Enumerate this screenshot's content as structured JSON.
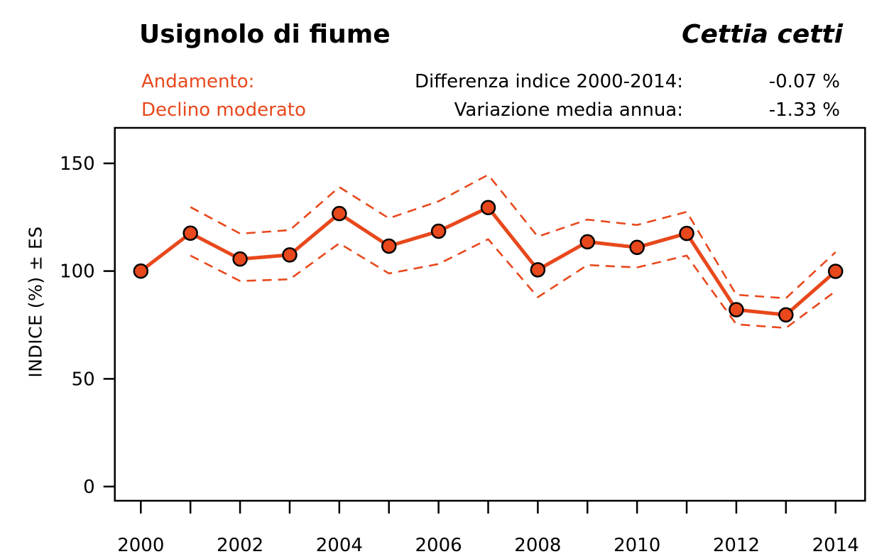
{
  "header": {
    "common_name": "Usignolo di fiume",
    "species_name": "Cettia cetti",
    "trend_label": "Andamento:",
    "trend_value": "Declino moderato",
    "diff_label": "Differenza indice 2000-2014:",
    "diff_value": "-0.07 %",
    "annual_label": "Variazione media annua:",
    "annual_value": "-1.33 %"
  },
  "colors": {
    "accent": "#E8481C",
    "axis": "#000000",
    "background": "#FFFFFF"
  },
  "chart_data": {
    "type": "line",
    "title": "Usignolo di fiume",
    "subtitle": "Cettia cetti",
    "xlabel": "",
    "ylabel": "INDICE (%) ± ES",
    "x": [
      2000,
      2001,
      2002,
      2003,
      2004,
      2005,
      2006,
      2007,
      2008,
      2009,
      2010,
      2011,
      2012,
      2013,
      2014
    ],
    "series": [
      {
        "name": "Indice",
        "style": "solid",
        "marker": true,
        "values": [
          100.0,
          117.6,
          105.6,
          107.5,
          126.7,
          111.6,
          118.5,
          129.5,
          100.6,
          113.6,
          111.0,
          117.5,
          82.1,
          79.7,
          99.9
        ]
      },
      {
        "name": "Limite superiore (+ES)",
        "style": "dashed",
        "marker": false,
        "values": [
          null,
          129.7,
          117.4,
          119.0,
          139.0,
          124.5,
          132.4,
          144.7,
          116.0,
          123.9,
          121.4,
          127.5,
          89.0,
          87.4,
          108.8
        ]
      },
      {
        "name": "Limite inferiore (-ES)",
        "style": "dashed",
        "marker": false,
        "values": [
          null,
          107.2,
          95.4,
          96.2,
          112.9,
          98.9,
          103.3,
          114.8,
          87.9,
          102.8,
          101.7,
          107.2,
          75.3,
          73.6,
          90.7
        ]
      }
    ],
    "ylim": [
      0,
      166
    ],
    "yticks": [
      0,
      50,
      100,
      150
    ],
    "xtick_labels": [
      2000,
      2002,
      2004,
      2006,
      2008,
      2010,
      2012,
      2014
    ],
    "grid": false,
    "legend": "none"
  }
}
